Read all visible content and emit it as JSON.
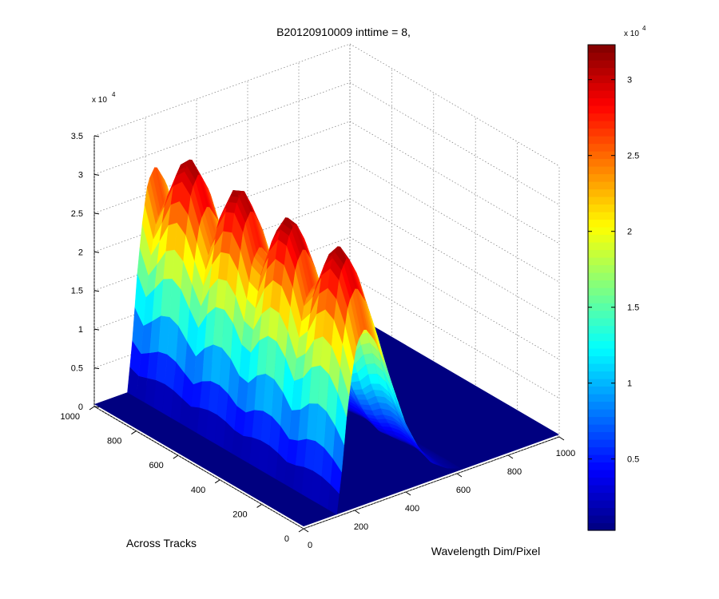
{
  "chart_data": {
    "type": "surface3d",
    "title": "B20120910009 inttime = 8,",
    "xlabel": "Wavelength Dim/Pixel",
    "ylabel": "Across Tracks",
    "zlabel": "",
    "xlim": [
      0,
      1000
    ],
    "ylim": [
      0,
      1000
    ],
    "zlim": [
      0,
      35000
    ],
    "x_ticks": [
      "0",
      "200",
      "400",
      "600",
      "800",
      "1000"
    ],
    "y_ticks": [
      "0",
      "200",
      "400",
      "600",
      "800",
      "1000"
    ],
    "z_ticks": [
      "0",
      "0.5",
      "1",
      "1.5",
      "2",
      "2.5",
      "3",
      "3.5"
    ],
    "z_exponent_label": "x 10",
    "z_exponent_power": "4",
    "grid": true,
    "colormap": "jet",
    "colorbar": {
      "clim": [
        300,
        32300
      ],
      "ticks": [
        "0.5",
        "1",
        "1.5",
        "2",
        "2.5",
        "3"
      ],
      "tick_values": [
        5000,
        10000,
        15000,
        20000,
        25000,
        30000
      ],
      "exponent_label": "x 10",
      "exponent_power": "4",
      "placement": "right"
    },
    "surface": {
      "description_peak_wavelength_pixel": 240,
      "peak_value": 32000,
      "baseline_value": 300,
      "active_across_track_range": [
        0,
        1000
      ],
      "profile_samples": [
        {
          "x": 130,
          "z": 300
        },
        {
          "x": 150,
          "z": 8000
        },
        {
          "x": 170,
          "z": 18000
        },
        {
          "x": 190,
          "z": 25000
        },
        {
          "x": 210,
          "z": 30000
        },
        {
          "x": 240,
          "z": 32000
        },
        {
          "x": 280,
          "z": 29000
        },
        {
          "x": 320,
          "z": 24000
        },
        {
          "x": 360,
          "z": 18000
        },
        {
          "x": 400,
          "z": 12000
        },
        {
          "x": 450,
          "z": 7000
        },
        {
          "x": 500,
          "z": 3500
        },
        {
          "x": 560,
          "z": 1500
        },
        {
          "x": 620,
          "z": 500
        }
      ]
    }
  }
}
